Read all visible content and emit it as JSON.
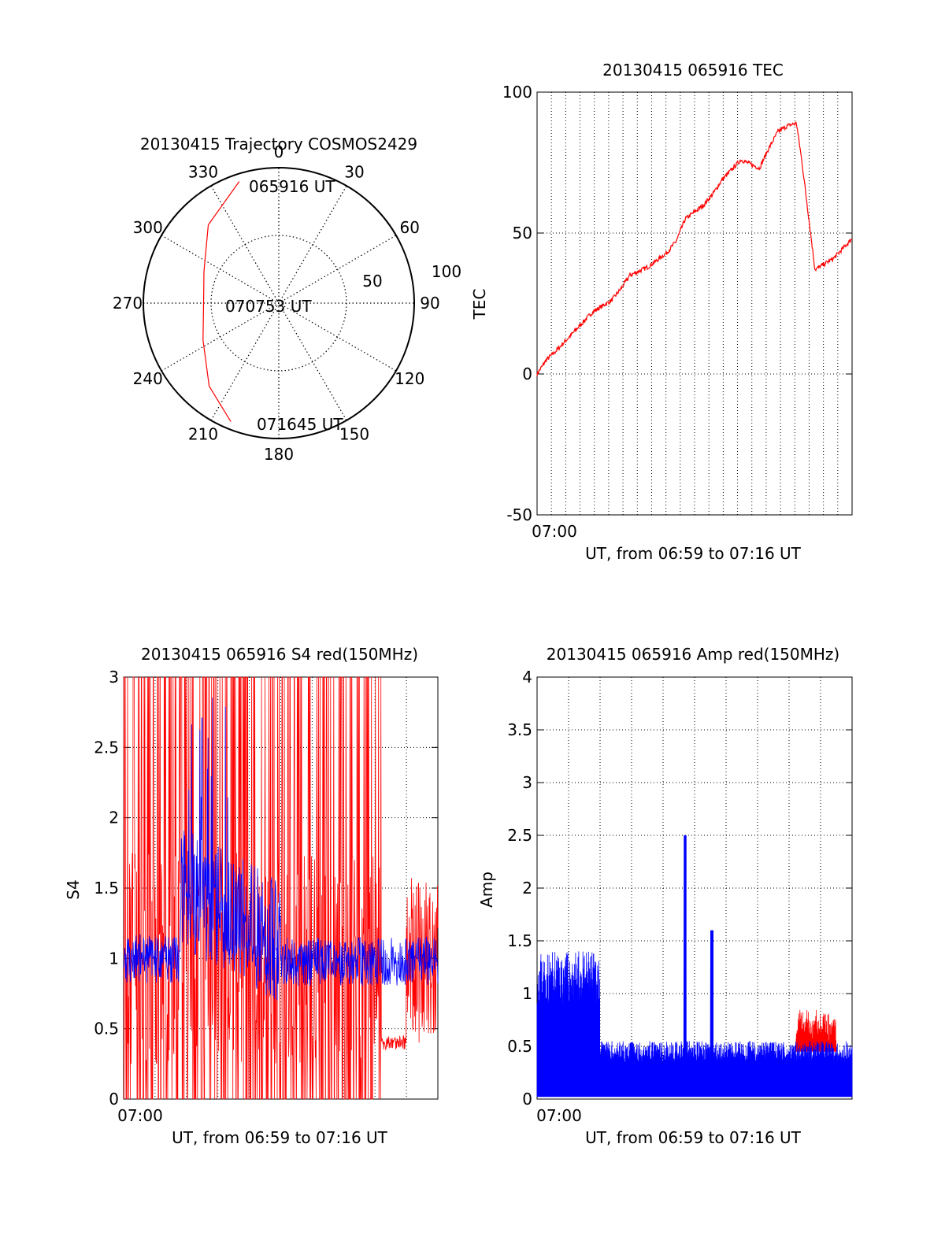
{
  "chart_data": [
    {
      "type": "polar",
      "title": "20130415 Trajectory COSMOS2429",
      "azimuth_labels": [
        "0",
        "30",
        "60",
        "90",
        "120",
        "150",
        "180",
        "210",
        "240",
        "270",
        "300",
        "330"
      ],
      "radial_labels": [
        "50",
        "100"
      ],
      "trajectory_color": "#ff0000",
      "trajectory_start_label": "065916 UT",
      "trajectory_mid_label": "070753 UT",
      "trajectory_end_label": "071645 UT",
      "trajectory": [
        {
          "az": 342,
          "el": 5
        },
        {
          "az": 318,
          "el": 20
        },
        {
          "az": 293,
          "el": 36
        },
        {
          "az": 269,
          "el": 40
        },
        {
          "az": 244,
          "el": 34
        },
        {
          "az": 220,
          "el": 18
        },
        {
          "az": 202,
          "el": 5
        }
      ]
    },
    {
      "type": "line",
      "title": "20130415 065916 TEC",
      "xlabel": "UT, from 06:59 to 07:16 UT",
      "ylabel": "TEC",
      "xtick_label": "07:00",
      "ylim": [
        -50,
        100
      ],
      "yticks": [
        "-50",
        "0",
        "50",
        "100"
      ],
      "grid": true,
      "series": [
        {
          "color": "#ff0000",
          "x_minutes": [
            0,
            0.5,
            1,
            2,
            3,
            4,
            4.5,
            5,
            6,
            7,
            7.5,
            8,
            9,
            9.5,
            10,
            11,
            12,
            12.5,
            13,
            13.5,
            14,
            14.3,
            15,
            16,
            17
          ],
          "values": [
            0,
            5,
            8,
            15,
            22,
            26,
            30,
            35,
            38,
            43,
            47,
            55,
            60,
            64,
            69,
            76,
            73,
            80,
            86,
            88,
            89,
            75,
            37,
            41,
            48
          ]
        }
      ]
    },
    {
      "type": "line",
      "title": "20130415 065916 S4 red(150MHz)",
      "xlabel": "UT, from 06:59 to 07:16 UT",
      "ylabel": "S4",
      "xtick_label": "07:00",
      "ylim": [
        0,
        3
      ],
      "yticks": [
        "0",
        "0.5",
        "1",
        "1.5",
        "2",
        "2.5",
        "3"
      ],
      "grid": true,
      "series": [
        {
          "color": "#ff0000",
          "description_range": [
            0,
            3
          ]
        },
        {
          "color": "#0000ff",
          "description_range": [
            0.65,
            3
          ]
        }
      ]
    },
    {
      "type": "line",
      "title": "20130415 065916 Amp red(150MHz)",
      "xlabel": "UT, from 06:59 to 07:16 UT",
      "ylabel": "Amp",
      "xtick_label": "07:00",
      "ylim": [
        0,
        4
      ],
      "yticks": [
        "0",
        "0.5",
        "1",
        "1.5",
        "2",
        "2.5",
        "3",
        "3.5",
        "4"
      ],
      "grid": true,
      "series": [
        {
          "color": "#ff0000"
        },
        {
          "color": "#0000ff",
          "peak": 2.5
        }
      ]
    }
  ]
}
